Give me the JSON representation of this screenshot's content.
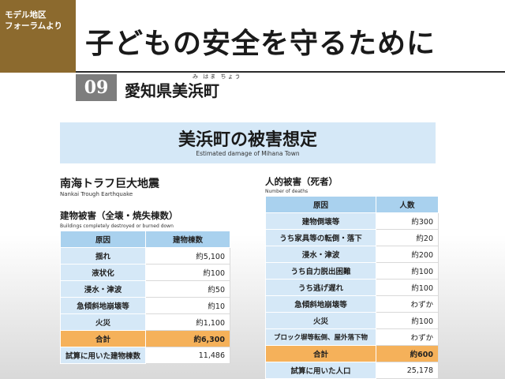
{
  "corner": {
    "line1": "モデル地区",
    "line2": "フォーラムより"
  },
  "main_title": "子どもの安全を守るために",
  "episode_number": "09",
  "area": {
    "name": "愛知県美浜町",
    "ruby": "み はま ちょう"
  },
  "header": {
    "title": "美浜町の被害想定",
    "subtitle": "Estimated damage of Mihana Town"
  },
  "scenario": {
    "title": "南海トラフ巨大地震",
    "subtitle": "Nankai Trough Earthquake"
  },
  "buildings": {
    "title": "建物被害（全壊・焼失棟数）",
    "subtitle": "Buildings completely destroyed or burned down",
    "headers": [
      "原因",
      "建物棟数"
    ],
    "rows": [
      {
        "cause": "揺れ",
        "value": "約5,100"
      },
      {
        "cause": "液状化",
        "value": "約100"
      },
      {
        "cause": "浸水・津波",
        "value": "約50"
      },
      {
        "cause": "急傾斜地崩壊等",
        "value": "約10"
      },
      {
        "cause": "火災",
        "value": "約1,100"
      }
    ],
    "total": {
      "cause": "合計",
      "value": "約6,300"
    },
    "basis": {
      "cause": "試算に用いた建物棟数",
      "value": "11,486"
    }
  },
  "casualties": {
    "title": "人的被害（死者）",
    "subtitle": "Number of deaths",
    "headers": [
      "原因",
      "人数"
    ],
    "rows": [
      {
        "cause": "建物倒壊等",
        "value": "約300"
      },
      {
        "cause": "うち家具等の転倒・落下",
        "value": "約20"
      },
      {
        "cause": "浸水・津波",
        "value": "約200"
      },
      {
        "cause": "うち自力脱出困難",
        "value": "約100"
      },
      {
        "cause": "うち逃げ遅れ",
        "value": "約100"
      },
      {
        "cause": "急傾斜地崩壊等",
        "value": "わずか"
      },
      {
        "cause": "火災",
        "value": "約100"
      },
      {
        "cause": "ブロック塀等転倒、屋外落下物",
        "value": "わずか"
      }
    ],
    "total": {
      "cause": "合計",
      "value": "約600"
    },
    "basis": {
      "cause": "試算に用いた人口",
      "value": "25,178"
    }
  }
}
